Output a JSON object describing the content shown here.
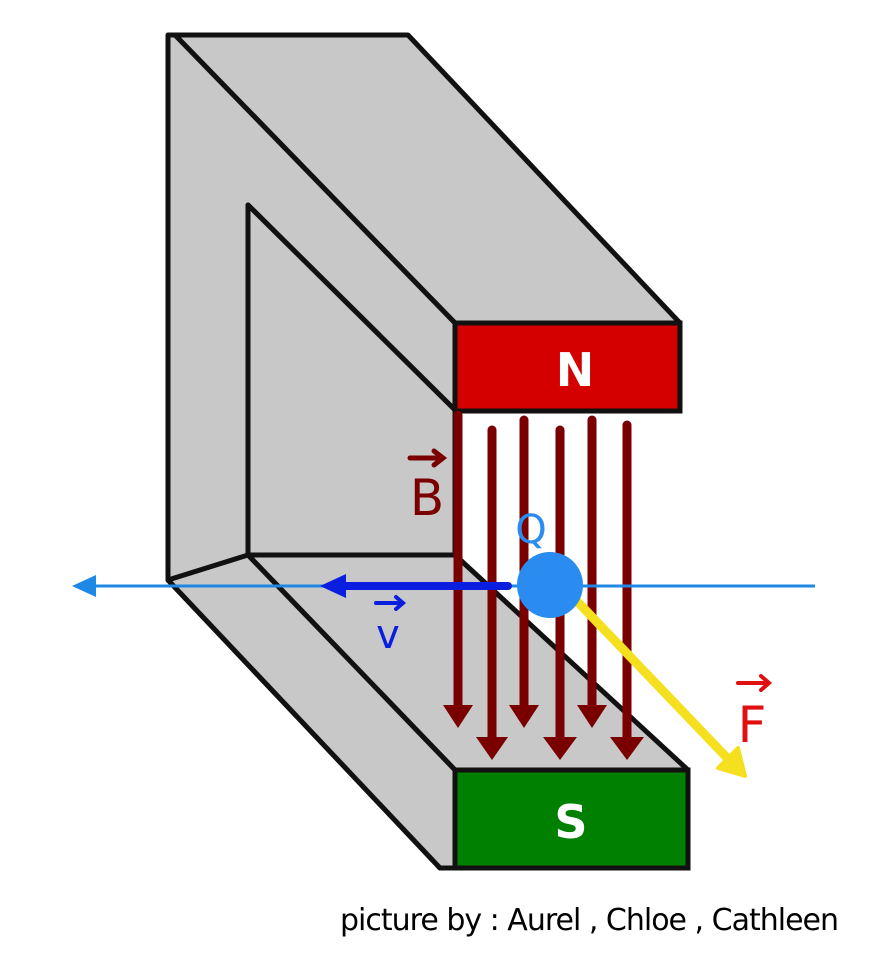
{
  "diagram": {
    "north_pole_label": "N",
    "south_pole_label": "S",
    "field_label": "B",
    "velocity_label": "v",
    "force_label": "F",
    "charge_label": "Q",
    "credit": "picture by : Aurel , Chloe , Cathleen"
  },
  "colors": {
    "magnet_body": "#c8c8c8",
    "north_pole": "#d40000",
    "south_pole": "#008000",
    "field_lines": "#7a0000",
    "velocity": "#0a1ee0",
    "path_line": "#1e88e5",
    "charge": "#2a8cf0",
    "force": "#f5e020",
    "force_label": "#e01010"
  },
  "icons": {
    "velocity_arrow": "arrow-left",
    "force_arrow": "arrow-down-right",
    "field_arrows": "arrow-down"
  }
}
